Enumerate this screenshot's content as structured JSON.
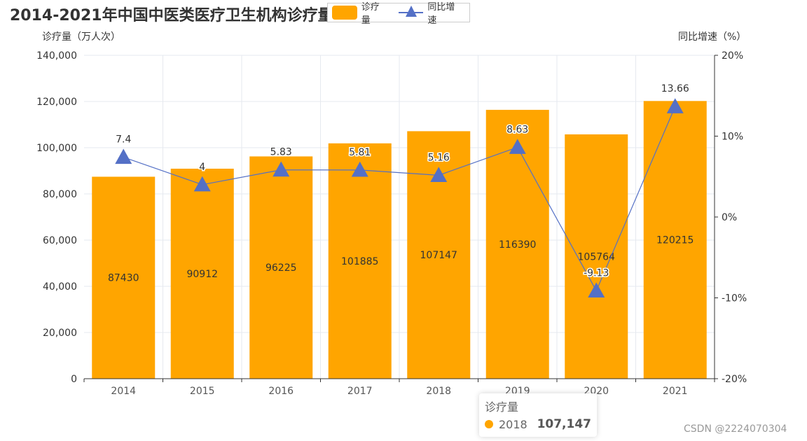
{
  "chart_data": {
    "type": "bar",
    "title": "2014-2021年中国中医类医疗卫生机构诊疗量",
    "categories": [
      "2014",
      "2015",
      "2016",
      "2017",
      "2018",
      "2019",
      "2020",
      "2021"
    ],
    "series": [
      {
        "name": "诊疗量",
        "type": "bar",
        "axis": "left",
        "color": "#ffa500",
        "values": [
          87430,
          90912,
          96225,
          101885,
          107147,
          116390,
          105764,
          120215
        ],
        "labels": [
          "87430",
          "90912",
          "96225",
          "101885",
          "107147",
          "116390",
          "105764",
          "120215"
        ]
      },
      {
        "name": "同比增速",
        "type": "line",
        "axis": "right",
        "color": "#5470c6",
        "values": [
          7.4,
          4,
          5.83,
          5.81,
          5.16,
          8.63,
          -9.13,
          13.66
        ],
        "labels": [
          "7.4",
          "4",
          "5.83",
          "5.81",
          "5.16",
          "8.63",
          "-9.13",
          "13.66"
        ]
      }
    ],
    "y_left": {
      "label": "诊疗量（万人次）",
      "min": 0,
      "max": 140000,
      "ticks": [
        0,
        20000,
        40000,
        60000,
        80000,
        100000,
        120000,
        140000
      ],
      "tick_labels": [
        "0",
        "20,000",
        "40,000",
        "60,000",
        "80,000",
        "100,000",
        "120,000",
        "140,000"
      ]
    },
    "y_right": {
      "label": "同比增速（%）",
      "min": -20,
      "max": 20,
      "ticks": [
        -20,
        -10,
        0,
        10,
        20
      ],
      "tick_labels": [
        "-20%",
        "-10%",
        "0%",
        "10%",
        "20%"
      ]
    },
    "grid": true,
    "legend_position": "top-center"
  },
  "tooltip": {
    "series_name": "诊疗量",
    "category": "2018",
    "value": "107,147"
  },
  "watermark": "CSDN @2224070304"
}
